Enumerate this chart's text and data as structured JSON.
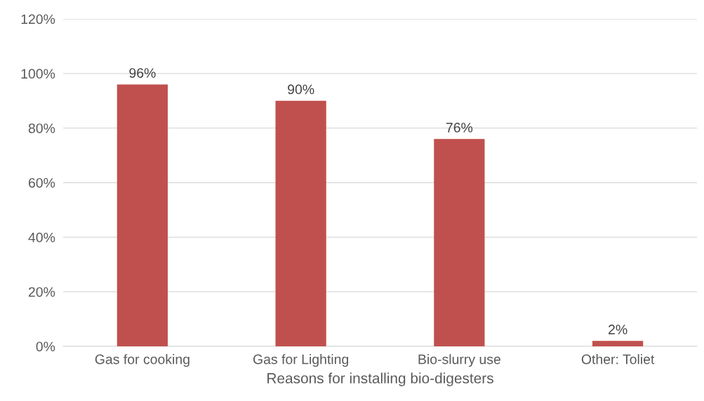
{
  "chart_data": {
    "type": "bar",
    "xlabel": "Reasons for installing bio-digesters",
    "categories": [
      "Gas for cooking",
      "Gas for Lighting",
      "Bio-slurry use",
      "Other: Toliet"
    ],
    "values": [
      96,
      90,
      76,
      2
    ],
    "value_labels": [
      "96%",
      "90%",
      "76%",
      "2%"
    ],
    "color": "#c0504d",
    "ylim": [
      0,
      120
    ],
    "yticks": [
      {
        "value": 0,
        "label": "0%"
      },
      {
        "value": 20,
        "label": "20%"
      },
      {
        "value": 40,
        "label": "40%"
      },
      {
        "value": 60,
        "label": "60%"
      },
      {
        "value": 80,
        "label": "80%"
      },
      {
        "value": 100,
        "label": "100%"
      },
      {
        "value": 120,
        "label": "120%"
      }
    ],
    "grid": "y",
    "legend": false
  }
}
